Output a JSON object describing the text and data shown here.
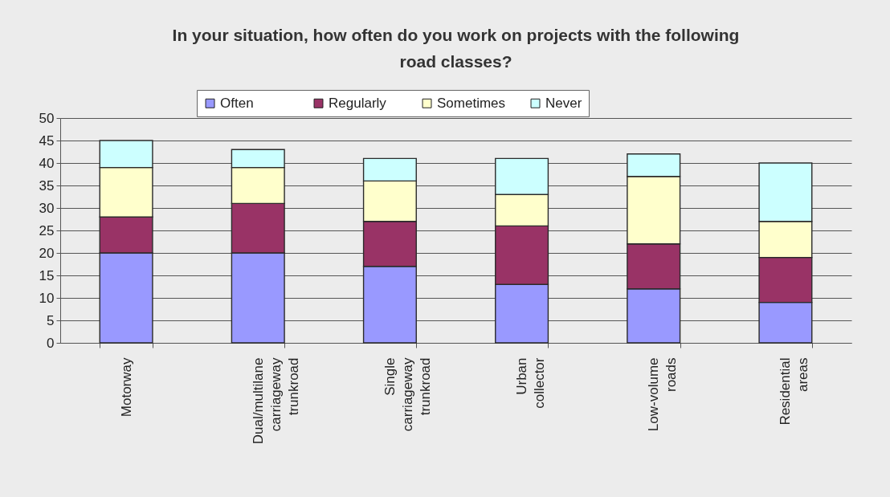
{
  "chart_data": {
    "type": "bar",
    "title": "In your situation, how often do you work on projects with the following road classes?",
    "categories": [
      "Motorway",
      "Dual/multilane carriageway trunkroad",
      "Single carriageway trunkroad",
      "Urban collector",
      "Low-volume roads",
      "Residential areas"
    ],
    "stacked": true,
    "series": [
      {
        "name": "Often",
        "color": "#9999ff",
        "values": [
          20,
          20,
          17,
          13,
          12,
          9
        ]
      },
      {
        "name": "Regularly",
        "color": "#993366",
        "values": [
          8,
          11,
          10,
          13,
          10,
          10
        ]
      },
      {
        "name": "Sometimes",
        "color": "#ffffcc",
        "values": [
          11,
          8,
          9,
          7,
          15,
          8
        ]
      },
      {
        "name": "Never",
        "color": "#ccffff",
        "values": [
          6,
          4,
          5,
          8,
          5,
          13
        ]
      }
    ],
    "ylim": [
      0,
      50
    ],
    "yticks": [
      0,
      5,
      10,
      15,
      20,
      25,
      30,
      35,
      40,
      45,
      50
    ],
    "grid": "y",
    "legend": "top"
  }
}
